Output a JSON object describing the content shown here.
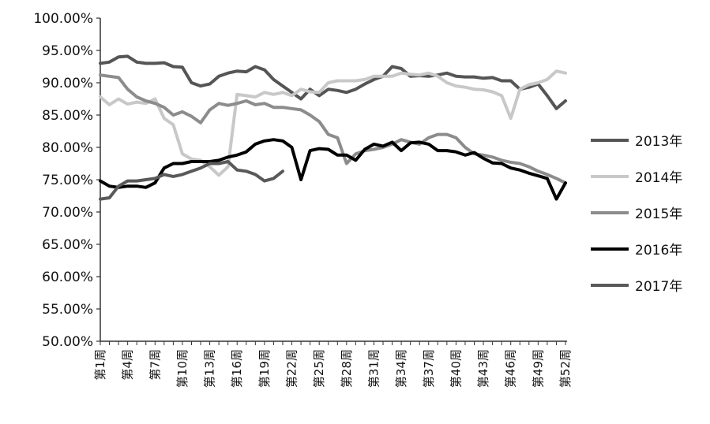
{
  "chart_data": {
    "type": "line",
    "title": "",
    "xlabel": "",
    "ylabel": "",
    "ylim": [
      0.5,
      1.0
    ],
    "y_ticks": [
      0.5,
      0.55,
      0.6,
      0.65,
      0.7,
      0.75,
      0.8,
      0.85,
      0.9,
      0.95,
      1.0
    ],
    "y_tick_labels": [
      "50.00%",
      "55.00%",
      "60.00%",
      "65.00%",
      "70.00%",
      "75.00%",
      "80.00%",
      "85.00%",
      "90.00%",
      "95.00%",
      "100.00%"
    ],
    "categories": [
      "第1周",
      "第2周",
      "第3周",
      "第4周",
      "第5周",
      "第6周",
      "第7周",
      "第8周",
      "第9周",
      "第10周",
      "第11周",
      "第12周",
      "第13周",
      "第14周",
      "第15周",
      "第16周",
      "第17周",
      "第18周",
      "第19周",
      "第20周",
      "第21周",
      "第22周",
      "第23周",
      "第24周",
      "第25周",
      "第26周",
      "第27周",
      "第28周",
      "第29周",
      "第30周",
      "第31周",
      "第32周",
      "第33周",
      "第34周",
      "第35周",
      "第36周",
      "第37周",
      "第38周",
      "第39周",
      "第40周",
      "第41周",
      "第42周",
      "第43周",
      "第44周",
      "第45周",
      "第46周",
      "第47周",
      "第48周",
      "第49周",
      "第50周",
      "第51周",
      "第52周"
    ],
    "x_tick_labels": [
      "第1周",
      "第4周",
      "第7周",
      "第10周",
      "第13周",
      "第16周",
      "第19周",
      "第22周",
      "第25周",
      "第28周",
      "第31周",
      "第34周",
      "第37周",
      "第40周",
      "第43周",
      "第46周",
      "第49周",
      "第52周"
    ],
    "grid": false,
    "legend_position": "right",
    "series": [
      {
        "name": "2013年",
        "color": "#555555",
        "width": 4,
        "values": [
          0.93,
          0.932,
          0.94,
          0.941,
          0.932,
          0.93,
          0.93,
          0.931,
          0.925,
          0.924,
          0.9,
          0.895,
          0.898,
          0.91,
          0.915,
          0.918,
          0.917,
          0.925,
          0.92,
          0.905,
          0.895,
          0.885,
          0.875,
          0.89,
          0.88,
          0.89,
          0.888,
          0.885,
          0.89,
          0.898,
          0.905,
          0.91,
          0.925,
          0.922,
          0.91,
          0.911,
          0.91,
          0.912,
          0.915,
          0.91,
          0.909,
          0.909,
          0.907,
          0.908,
          0.903,
          0.903,
          0.89,
          0.893,
          0.898,
          0.88,
          0.86,
          0.872
        ]
      },
      {
        "name": "2014年",
        "color": "#c8c8c8",
        "width": 4,
        "values": [
          0.878,
          0.866,
          0.875,
          0.867,
          0.87,
          0.868,
          0.875,
          0.845,
          0.835,
          0.79,
          0.782,
          0.78,
          0.77,
          0.757,
          0.77,
          0.882,
          0.88,
          0.878,
          0.885,
          0.882,
          0.885,
          0.88,
          0.89,
          0.886,
          0.885,
          0.9,
          0.903,
          0.903,
          0.903,
          0.905,
          0.91,
          0.91,
          0.91,
          0.915,
          0.913,
          0.912,
          0.915,
          0.91,
          0.9,
          0.895,
          0.893,
          0.89,
          0.889,
          0.886,
          0.88,
          0.845,
          0.89,
          0.897,
          0.9,
          0.905,
          0.918,
          0.915
        ]
      },
      {
        "name": "2015年",
        "color": "#8c8c8c",
        "width": 4,
        "values": [
          0.912,
          0.91,
          0.908,
          0.89,
          0.878,
          0.872,
          0.868,
          0.862,
          0.85,
          0.855,
          0.848,
          0.838,
          0.858,
          0.868,
          0.865,
          0.868,
          0.872,
          0.866,
          0.868,
          0.862,
          0.862,
          0.86,
          0.858,
          0.85,
          0.84,
          0.82,
          0.815,
          0.775,
          0.79,
          0.795,
          0.797,
          0.8,
          0.805,
          0.812,
          0.808,
          0.805,
          0.815,
          0.82,
          0.82,
          0.815,
          0.8,
          0.79,
          0.788,
          0.785,
          0.78,
          0.777,
          0.775,
          0.77,
          0.763,
          0.758,
          0.752,
          0.745
        ]
      },
      {
        "name": "2016年",
        "color": "#000000",
        "width": 4,
        "values": [
          0.748,
          0.74,
          0.738,
          0.74,
          0.74,
          0.738,
          0.745,
          0.768,
          0.775,
          0.775,
          0.778,
          0.778,
          0.778,
          0.78,
          0.785,
          0.788,
          0.793,
          0.805,
          0.81,
          0.812,
          0.81,
          0.8,
          0.75,
          0.795,
          0.798,
          0.797,
          0.788,
          0.788,
          0.78,
          0.797,
          0.805,
          0.802,
          0.808,
          0.795,
          0.807,
          0.808,
          0.805,
          0.795,
          0.795,
          0.793,
          0.788,
          0.792,
          0.783,
          0.776,
          0.775,
          0.768,
          0.765,
          0.76,
          0.756,
          0.752,
          0.72,
          0.745
        ]
      },
      {
        "name": "2017年",
        "color": "#595959",
        "width": 4,
        "values": [
          0.72,
          0.722,
          0.74,
          0.748,
          0.748,
          0.75,
          0.752,
          0.758,
          0.755,
          0.758,
          0.763,
          0.768,
          0.775,
          0.775,
          0.778,
          0.765,
          0.763,
          0.758,
          0.748,
          0.752,
          0.763,
          null,
          null,
          null,
          null,
          null,
          null,
          null,
          null,
          null,
          null,
          null,
          null,
          null,
          null,
          null,
          null,
          null,
          null,
          null,
          null,
          null,
          null,
          null,
          null,
          null,
          null,
          null,
          null,
          null,
          null,
          null
        ]
      }
    ]
  }
}
